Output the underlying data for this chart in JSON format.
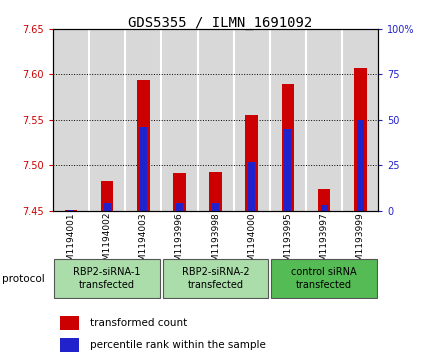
{
  "title": "GDS5355 / ILMN_1691092",
  "samples": [
    "GSM1194001",
    "GSM1194002",
    "GSM1194003",
    "GSM1193996",
    "GSM1193998",
    "GSM1194000",
    "GSM1193995",
    "GSM1193997",
    "GSM1193999"
  ],
  "transformed_counts": [
    7.451,
    7.483,
    7.594,
    7.491,
    7.493,
    7.555,
    7.589,
    7.474,
    7.607
  ],
  "percentile_ranks": [
    0.5,
    4,
    46,
    4,
    4,
    27,
    45,
    3,
    50
  ],
  "ylim_left": [
    7.45,
    7.65
  ],
  "ylim_right": [
    0,
    100
  ],
  "yticks_left": [
    7.45,
    7.5,
    7.55,
    7.6,
    7.65
  ],
  "yticks_right": [
    0,
    25,
    50,
    75,
    100
  ],
  "left_color": "#cc0000",
  "right_color": "#2222cc",
  "bar_base": 7.45,
  "protocols": [
    {
      "label": "RBP2-siRNA-1\ntransfected",
      "start": 0,
      "end": 3,
      "color": "#aaddaa"
    },
    {
      "label": "RBP2-siRNA-2\ntransfected",
      "start": 3,
      "end": 6,
      "color": "#aaddaa"
    },
    {
      "label": "control siRNA\ntransfected",
      "start": 6,
      "end": 9,
      "color": "#55bb55"
    }
  ],
  "bg_color": "#d8d8d8",
  "title_fontsize": 10,
  "tick_fontsize": 7,
  "label_fontsize": 7.5,
  "red_bar_width": 0.35,
  "blue_bar_width": 0.35
}
